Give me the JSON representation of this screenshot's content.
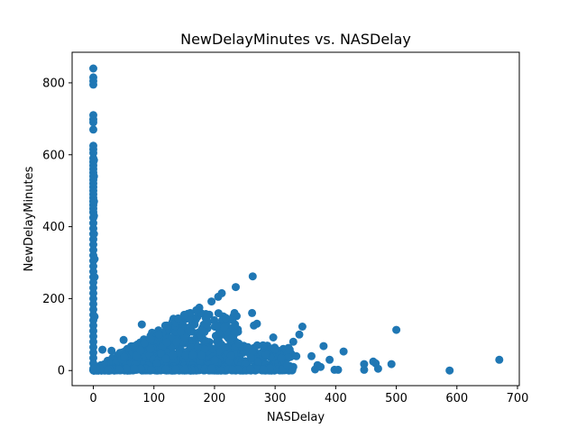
{
  "chart_data": {
    "type": "scatter",
    "title": "NewDelayMinutes vs. NASDelay",
    "xlabel": "NASDelay",
    "ylabel": "NewDelayMinutes",
    "xlim": [
      -35,
      703
    ],
    "ylim": [
      -42,
      885
    ],
    "xticks": [
      0,
      100,
      200,
      300,
      400,
      500,
      600,
      700
    ],
    "yticks": [
      0,
      200,
      400,
      600,
      800
    ],
    "xtick_labels": [
      "0",
      "100",
      "200",
      "300",
      "400",
      "500",
      "600",
      "700"
    ],
    "ytick_labels": [
      "0",
      "200",
      "400",
      "600",
      "800"
    ],
    "grid": false,
    "legend": "none",
    "marker_color": "#1f77b4",
    "series": [
      {
        "name": "NewDelayMinutes",
        "points": [
          [
            0,
            840
          ],
          [
            0,
            815
          ],
          [
            0,
            805
          ],
          [
            0,
            795
          ],
          [
            0,
            710
          ],
          [
            0,
            698
          ],
          [
            0,
            690
          ],
          [
            0,
            670
          ],
          [
            0,
            625
          ],
          [
            0,
            615
          ],
          [
            0,
            605
          ],
          [
            0,
            590
          ],
          [
            0,
            580
          ],
          [
            0,
            570
          ],
          [
            0,
            560
          ],
          [
            0,
            550
          ],
          [
            0,
            540
          ],
          [
            0,
            530
          ],
          [
            0,
            520
          ],
          [
            0,
            510
          ],
          [
            0,
            500
          ],
          [
            0,
            490
          ],
          [
            0,
            480
          ],
          [
            0,
            470
          ],
          [
            0,
            460
          ],
          [
            0,
            450
          ],
          [
            0,
            440
          ],
          [
            0,
            425
          ],
          [
            0,
            410
          ],
          [
            0,
            395
          ],
          [
            0,
            380
          ],
          [
            0,
            365
          ],
          [
            0,
            350
          ],
          [
            0,
            335
          ],
          [
            0,
            320
          ],
          [
            0,
            305
          ],
          [
            0,
            290
          ],
          [
            0,
            275
          ],
          [
            0,
            260
          ],
          [
            0,
            245
          ],
          [
            0,
            230
          ],
          [
            0,
            215
          ],
          [
            0,
            200
          ],
          [
            0,
            185
          ],
          [
            0,
            170
          ],
          [
            0,
            155
          ],
          [
            0,
            140
          ],
          [
            0,
            125
          ],
          [
            0,
            110
          ],
          [
            0,
            95
          ],
          [
            0,
            80
          ],
          [
            0,
            65
          ],
          [
            0,
            50
          ],
          [
            0,
            35
          ],
          [
            0,
            20
          ],
          [
            0,
            5
          ],
          [
            1,
            585
          ],
          [
            1,
            540
          ],
          [
            1,
            470
          ],
          [
            1,
            430
          ],
          [
            1,
            380
          ],
          [
            2,
            310
          ],
          [
            2,
            260
          ],
          [
            2,
            150
          ],
          [
            670,
            30
          ],
          [
            588,
            0
          ],
          [
            500,
            113
          ],
          [
            492,
            18
          ],
          [
            470,
            5
          ],
          [
            466,
            20
          ],
          [
            462,
            25
          ],
          [
            447,
            18
          ],
          [
            447,
            2
          ],
          [
            413,
            53
          ],
          [
            404,
            2
          ],
          [
            398,
            2
          ],
          [
            390,
            30
          ],
          [
            380,
            68
          ],
          [
            375,
            10
          ],
          [
            370,
            15
          ],
          [
            366,
            3
          ],
          [
            360,
            40
          ],
          [
            345,
            122
          ],
          [
            340,
            100
          ],
          [
            335,
            40
          ],
          [
            330,
            80
          ],
          [
            324,
            58
          ],
          [
            320,
            15
          ],
          [
            300,
            60
          ],
          [
            297,
            92
          ],
          [
            280,
            70
          ],
          [
            270,
            130
          ],
          [
            265,
            125
          ],
          [
            262,
            160
          ],
          [
            263,
            262
          ],
          [
            235,
            232
          ],
          [
            233,
            160
          ],
          [
            212,
            215
          ],
          [
            206,
            205
          ],
          [
            195,
            192
          ],
          [
            187,
            128
          ],
          [
            175,
            175
          ],
          [
            170,
            168
          ],
          [
            160,
            160
          ],
          [
            150,
            155
          ],
          [
            140,
            145
          ],
          [
            80,
            128
          ],
          [
            50,
            85
          ],
          [
            30,
            55
          ],
          [
            15,
            58
          ],
          [
            216,
            120
          ],
          [
            226,
            88
          ],
          [
            240,
            75
          ],
          [
            255,
            65
          ],
          [
            285,
            45
          ],
          [
            310,
            35
          ],
          [
            330,
            10
          ]
        ],
        "note": "Dense band of points spans NASDelay 0-240 with NewDelayMinutes 0-160; upper envelope rises roughly from (0,0) to (150,160); lower band concentrated below 90 extending to ~330"
      }
    ]
  }
}
